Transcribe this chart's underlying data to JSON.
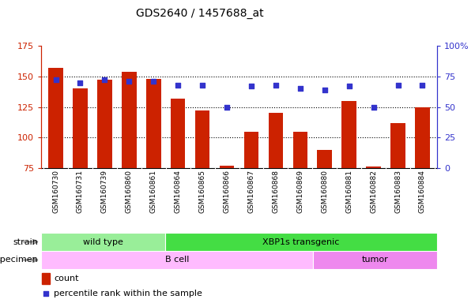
{
  "title": "GDS2640 / 1457688_at",
  "samples": [
    "GSM160730",
    "GSM160731",
    "GSM160739",
    "GSM160860",
    "GSM160861",
    "GSM160864",
    "GSM160865",
    "GSM160866",
    "GSM160867",
    "GSM160868",
    "GSM160869",
    "GSM160880",
    "GSM160881",
    "GSM160882",
    "GSM160883",
    "GSM160884"
  ],
  "counts": [
    157,
    140,
    147,
    154,
    148,
    132,
    122,
    77,
    105,
    120,
    105,
    90,
    130,
    76,
    112,
    125
  ],
  "percentiles": [
    72,
    70,
    72,
    71,
    71,
    68,
    68,
    50,
    67,
    68,
    65,
    64,
    67,
    50,
    68,
    68
  ],
  "ylim_left": [
    75,
    175
  ],
  "ylim_right": [
    0,
    100
  ],
  "yticks_left": [
    75,
    100,
    125,
    150,
    175
  ],
  "yticks_right": [
    0,
    25,
    50,
    75,
    100
  ],
  "yticklabels_right": [
    "0",
    "25",
    "50",
    "75",
    "100%"
  ],
  "bar_color": "#cc2200",
  "dot_color": "#3333cc",
  "grid_color": "#000000",
  "strain_groups": [
    {
      "label": "wild type",
      "start": 0,
      "end": 5,
      "color": "#99ee99"
    },
    {
      "label": "XBP1s transgenic",
      "start": 5,
      "end": 16,
      "color": "#44dd44"
    }
  ],
  "specimen_groups": [
    {
      "label": "B cell",
      "start": 0,
      "end": 11,
      "color": "#ffbbff"
    },
    {
      "label": "tumor",
      "start": 11,
      "end": 16,
      "color": "#ee88ee"
    }
  ],
  "strain_label": "strain",
  "specimen_label": "specimen",
  "legend_count_label": "count",
  "legend_pct_label": "percentile rank within the sample",
  "bg_color": "#ffffff",
  "tick_area_color": "#cccccc",
  "fig_width": 6.01,
  "fig_height": 3.84,
  "dpi": 100
}
